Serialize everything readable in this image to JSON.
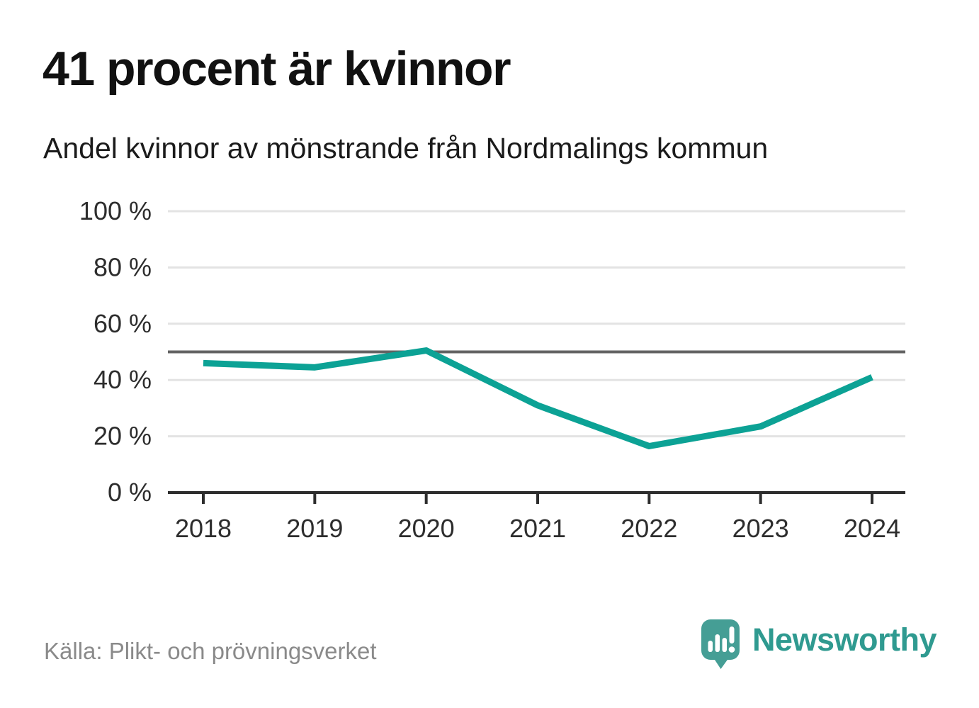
{
  "header": {
    "title": "41 procent är kvinnor",
    "subtitle": "Andel kvinnor av mönstrande från Nordmalings kommun"
  },
  "chart_data": {
    "type": "line",
    "title": "41 procent är kvinnor",
    "subtitle": "Andel kvinnor av mönstrande från Nordmalings kommun",
    "categories": [
      "2018",
      "2019",
      "2020",
      "2021",
      "2022",
      "2023",
      "2024"
    ],
    "series": [
      {
        "name": "Andel kvinnor av mönstrande",
        "values": [
          46,
          44.5,
          50.5,
          31,
          16.5,
          23.5,
          41
        ]
      }
    ],
    "xlabel": "",
    "ylabel": "",
    "ylim": [
      0,
      100
    ],
    "yticks": [
      0,
      20,
      40,
      60,
      80,
      100
    ],
    "ytick_suffix": " %",
    "reference_line": 50,
    "grid": "horizontal-only",
    "legend": "none",
    "colors": {
      "line": "#0ca295",
      "reference_line": "#636363",
      "gridline": "#e3e3e3",
      "axis": "#2d2d2d",
      "tick_label": "#2d2d2d"
    }
  },
  "footer": {
    "source": "Källa: Plikt- och prövningsverket",
    "logo_text": "Newsworthy",
    "logo_text_color": "#2f9a90",
    "logo_mark_color": "#459e95"
  }
}
